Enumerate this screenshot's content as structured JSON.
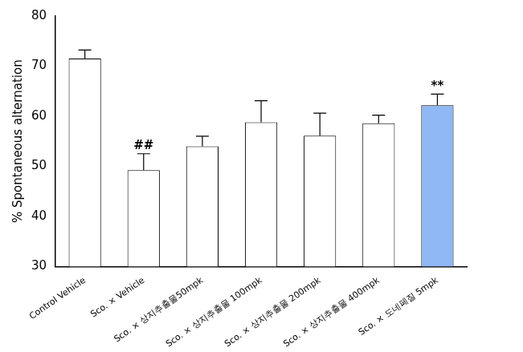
{
  "chart_data": {
    "type": "bar",
    "y_label": "% Spontaneous alternation",
    "categories": [
      "Control Vehicle",
      "Sco. × Vehicle",
      "Sco. × 상지추출물50mpk",
      "Sco. × 상지추출물 100mpk",
      "Sco. × 상지추출물 200mpk",
      "Sco. × 상지추출물 400mpk",
      "Sco. × 도네페질 5mpk"
    ],
    "values": [
      71.5,
      49.2,
      54.0,
      58.8,
      56.1,
      58.6,
      62.2
    ],
    "errors": [
      1.7,
      3.3,
      2.0,
      4.3,
      4.5,
      1.6,
      2.2
    ],
    "significance": [
      null,
      "##",
      null,
      null,
      null,
      null,
      "**"
    ],
    "colors": [
      "#ffffff",
      "#ffffff",
      "#ffffff",
      "#ffffff",
      "#ffffff",
      "#ffffff",
      "#8fb8f5"
    ],
    "ylim": [
      30,
      80
    ],
    "yticks": [
      30,
      40,
      50,
      60,
      70,
      80
    ],
    "grid": false
  }
}
